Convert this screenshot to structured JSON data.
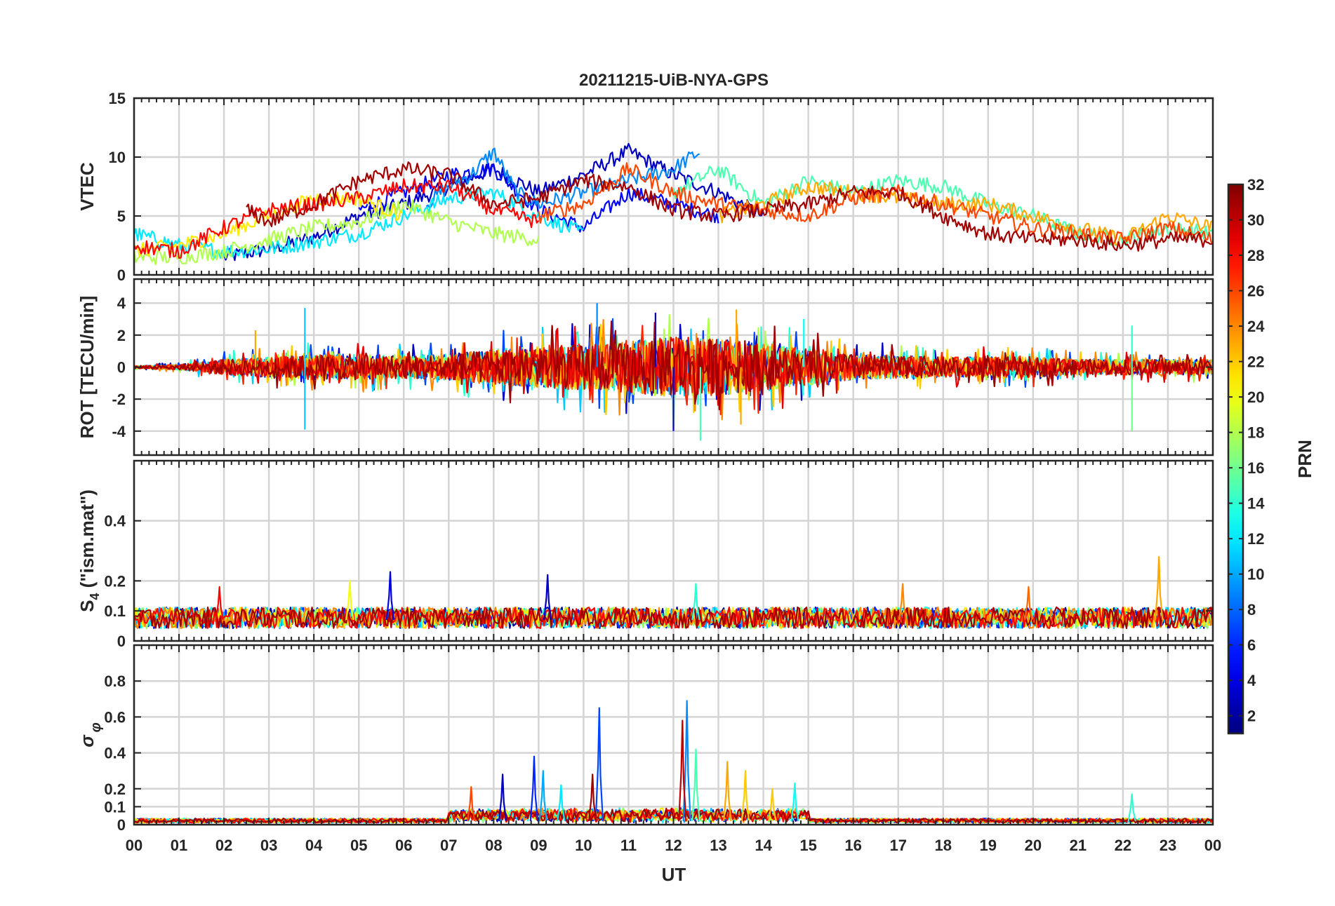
{
  "chart_data": {
    "type": "line",
    "title": "20211215-UiB-NYA-GPS",
    "xlabel": "UT",
    "x_ticks": [
      "00",
      "01",
      "02",
      "03",
      "04",
      "05",
      "06",
      "07",
      "08",
      "09",
      "10",
      "11",
      "12",
      "13",
      "14",
      "15",
      "16",
      "17",
      "18",
      "19",
      "20",
      "21",
      "22",
      "23",
      "00"
    ],
    "xlim": [
      0,
      24
    ],
    "panels": [
      {
        "id": "vtec",
        "ylabel": "VTEC",
        "ylim": [
          0,
          15
        ],
        "yticks": [
          0,
          5,
          10,
          15
        ],
        "series": [
          {
            "prn": 3,
            "x": [
              2.0,
              3,
              4,
              5,
              6,
              7,
              8,
              9,
              10,
              10.5,
              11,
              12,
              13,
              14
            ],
            "y": [
              1.5,
              2.2,
              3.2,
              5.0,
              6.0,
              7.5,
              9.0,
              7.0,
              8.5,
              9.5,
              10.5,
              8.5,
              7.0,
              5.0
            ]
          },
          {
            "prn": 5,
            "x": [
              5.0,
              6,
              7,
              8,
              9,
              10,
              11,
              12,
              13
            ],
            "y": [
              5.5,
              7.0,
              8.5,
              9.0,
              5.5,
              4.0,
              7.0,
              6.0,
              5.0
            ]
          },
          {
            "prn": 9,
            "x": [
              6.5,
              7,
              7.5,
              8,
              8.5,
              9,
              10,
              11,
              12,
              12.6
            ],
            "y": [
              6.0,
              7.5,
              8.5,
              10.5,
              7.0,
              6.0,
              7.0,
              8.0,
              9.0,
              10.5
            ]
          },
          {
            "prn": 12,
            "x": [
              0,
              1,
              2,
              3,
              4,
              5,
              6,
              7,
              8,
              9,
              10
            ],
            "y": [
              3.5,
              2.5,
              2.0,
              2.2,
              2.8,
              3.5,
              5.0,
              6.5,
              7.0,
              5.0,
              3.5
            ]
          },
          {
            "prn": 15,
            "x": [
              12.0,
              13,
              14,
              15,
              16,
              17,
              18,
              19,
              20,
              21,
              22,
              23,
              24
            ],
            "y": [
              7.0,
              9.0,
              6.0,
              8.0,
              7.0,
              8.0,
              7.5,
              6.0,
              5.0,
              3.5,
              3.0,
              4.0,
              3.5
            ]
          },
          {
            "prn": 18,
            "x": [
              0,
              1,
              2,
              3,
              4,
              5,
              6,
              7,
              8,
              9
            ],
            "y": [
              1.5,
              1.5,
              2.0,
              3.0,
              4.0,
              4.5,
              6.0,
              4.5,
              3.5,
              3.0
            ]
          },
          {
            "prn": 21,
            "x": [
              0,
              1,
              2,
              3,
              4,
              5,
              6
            ],
            "y": [
              2.0,
              2.5,
              3.5,
              5.0,
              6.5,
              6.5,
              5.0
            ]
          },
          {
            "prn": 23,
            "x": [
              13.0,
              14,
              15,
              16,
              17,
              18,
              19,
              20,
              21,
              22,
              23,
              24
            ],
            "y": [
              5.0,
              6.0,
              7.5,
              7.0,
              6.5,
              6.0,
              6.0,
              5.0,
              4.0,
              3.0,
              5.0,
              4.0
            ]
          },
          {
            "prn": 26,
            "x": [
              9.0,
              10,
              11,
              12,
              13,
              14,
              15,
              16,
              17,
              18,
              19,
              20,
              21,
              22,
              23,
              24
            ],
            "y": [
              5.0,
              6.0,
              9.0,
              7.0,
              6.0,
              5.5,
              5.0,
              6.5,
              7.0,
              6.0,
              5.0,
              4.0,
              3.5,
              3.0,
              4.0,
              3.0
            ]
          },
          {
            "prn": 28,
            "x": [
              0,
              1,
              2,
              3,
              4,
              5,
              6,
              7,
              8,
              9
            ],
            "y": [
              2.5,
              2.0,
              4.0,
              5.5,
              6.0,
              6.5,
              7.5,
              7.5,
              5.5,
              4.5
            ]
          },
          {
            "prn": 31,
            "x": [
              2.5,
              3,
              4,
              5,
              6,
              7,
              8,
              9,
              10,
              11,
              12,
              13,
              14,
              15,
              16,
              17,
              18,
              19,
              20,
              21,
              22,
              23,
              24
            ],
            "y": [
              5.5,
              4.5,
              6.0,
              8.0,
              9.0,
              8.5,
              6.0,
              6.5,
              8.0,
              7.5,
              5.5,
              5.0,
              5.5,
              6.0,
              7.0,
              7.0,
              5.0,
              3.5,
              3.0,
              3.0,
              2.5,
              3.0,
              3.0
            ]
          }
        ]
      },
      {
        "id": "rot",
        "ylabel": "ROT [TECU/min]",
        "ylim": [
          -5.5,
          5.5
        ],
        "yticks": [
          -4,
          -2,
          0,
          2,
          4
        ],
        "envelope": {
          "x": [
            0,
            1,
            2,
            3,
            4,
            5,
            6,
            7,
            8,
            9,
            10,
            11,
            12,
            13,
            14,
            15,
            16,
            17,
            18,
            19,
            20,
            21,
            22,
            23,
            24
          ],
          "amp": [
            0.1,
            0.2,
            0.6,
            0.8,
            1.0,
            1.0,
            0.9,
            1.0,
            1.4,
            1.6,
            1.8,
            2.0,
            2.4,
            2.2,
            1.8,
            1.4,
            1.0,
            0.9,
            0.8,
            0.8,
            0.8,
            0.6,
            0.6,
            0.6,
            0.6
          ]
        },
        "spikes": [
          {
            "x": 3.8,
            "y": 3.7,
            "prn": 11
          },
          {
            "x": 3.8,
            "y": -3.9,
            "prn": 11
          },
          {
            "x": 10.3,
            "y": 4.0,
            "prn": 9
          },
          {
            "x": 11.6,
            "y": 3.4,
            "prn": 3
          },
          {
            "x": 12.6,
            "y": -4.6,
            "prn": 15
          },
          {
            "x": 13.5,
            "y": -3.6,
            "prn": 23
          },
          {
            "x": 13.4,
            "y": 3.6,
            "prn": 23
          },
          {
            "x": 14.9,
            "y": 3.0,
            "prn": 13
          },
          {
            "x": 22.2,
            "y": 2.6,
            "prn": 14
          },
          {
            "x": 22.2,
            "y": -4.0,
            "prn": 16
          },
          {
            "x": 2.7,
            "y": 2.3,
            "prn": 23
          },
          {
            "x": 12.0,
            "y": -4.0,
            "prn": 4
          }
        ]
      },
      {
        "id": "s4",
        "ylabel": "S4 (\"ism.mat\")",
        "ylabel_parts": [
          "S",
          "4",
          " (\"ism.mat\")"
        ],
        "ylim": [
          0,
          0.6
        ],
        "yticks": [
          0,
          0.1,
          0.2,
          0.4
        ],
        "baseline": 0.07,
        "spikes": [
          {
            "x": 5.7,
            "y": 0.23,
            "prn": 4
          },
          {
            "x": 9.2,
            "y": 0.22,
            "prn": 3
          },
          {
            "x": 22.8,
            "y": 0.28,
            "prn": 23
          },
          {
            "x": 4.8,
            "y": 0.2,
            "prn": 20
          },
          {
            "x": 12.5,
            "y": 0.19,
            "prn": 14
          },
          {
            "x": 17.1,
            "y": 0.19,
            "prn": 24
          },
          {
            "x": 1.9,
            "y": 0.18,
            "prn": 28
          },
          {
            "x": 19.9,
            "y": 0.18,
            "prn": 25
          }
        ]
      },
      {
        "id": "sigma_phi",
        "ylabel": "σ φ",
        "ylabel_parts": [
          "σ",
          "φ"
        ],
        "ylim": [
          0,
          1.0
        ],
        "yticks": [
          0,
          0.1,
          0.2,
          0.4,
          0.6,
          0.8
        ],
        "baseline": 0.02,
        "spikes": [
          {
            "x": 10.35,
            "y": 0.65,
            "prn": 7
          },
          {
            "x": 12.3,
            "y": 0.69,
            "prn": 9
          },
          {
            "x": 12.2,
            "y": 0.58,
            "prn": 30
          },
          {
            "x": 12.5,
            "y": 0.42,
            "prn": 15
          },
          {
            "x": 8.9,
            "y": 0.38,
            "prn": 6
          },
          {
            "x": 9.1,
            "y": 0.3,
            "prn": 10
          },
          {
            "x": 13.2,
            "y": 0.35,
            "prn": 23
          },
          {
            "x": 13.6,
            "y": 0.3,
            "prn": 22
          },
          {
            "x": 10.2,
            "y": 0.28,
            "prn": 31
          },
          {
            "x": 8.2,
            "y": 0.28,
            "prn": 3
          },
          {
            "x": 7.5,
            "y": 0.21,
            "prn": 26
          },
          {
            "x": 14.7,
            "y": 0.23,
            "prn": 13
          },
          {
            "x": 22.2,
            "y": 0.17,
            "prn": 14
          },
          {
            "x": 9.5,
            "y": 0.22,
            "prn": 12
          },
          {
            "x": 14.2,
            "y": 0.2,
            "prn": 22
          }
        ]
      }
    ],
    "colorbar": {
      "label": "PRN",
      "range": [
        1,
        32
      ],
      "colormap": "jet",
      "ticks": [
        2,
        4,
        6,
        8,
        10,
        12,
        14,
        16,
        18,
        20,
        22,
        24,
        26,
        28,
        30,
        32
      ]
    },
    "grid": true
  }
}
